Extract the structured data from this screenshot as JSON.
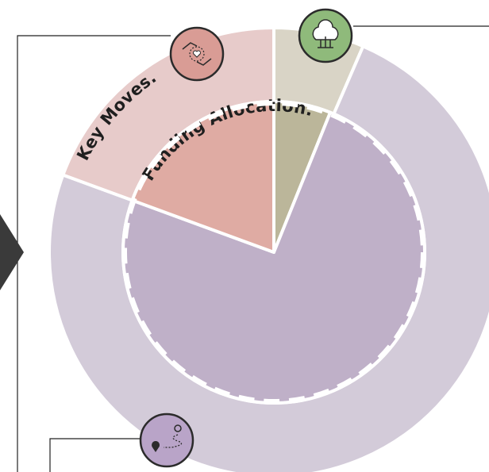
{
  "chart_data": [
    {
      "type": "pie",
      "title": "Key Moves.",
      "values": [
        6.5,
        74.1,
        19.4
      ],
      "colors": [
        "#d9d4c6",
        "#d3cbd9",
        "#e7cbca"
      ]
    },
    {
      "type": "pie",
      "title": "Funding Allocation.",
      "values": [
        6.1,
        74.5,
        19.4
      ],
      "colors": [
        "#bbb69a",
        "#bfb0c8",
        "#dfaba3"
      ]
    }
  ]
}
